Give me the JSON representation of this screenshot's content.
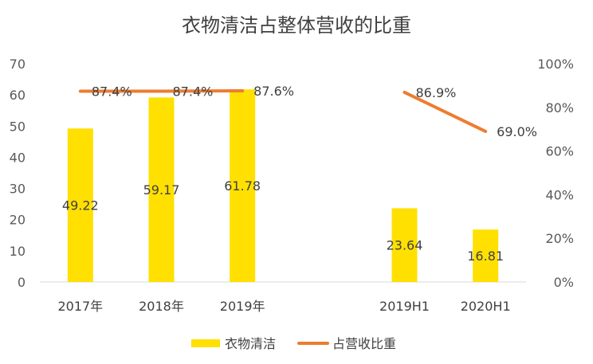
{
  "chart_data": {
    "type": "bar",
    "title": "衣物清洁占整体营收的比重",
    "categories": [
      "2017年",
      "2018年",
      "2019年",
      "",
      "2019H1",
      "2020H1"
    ],
    "series": [
      {
        "name": "衣物清洁",
        "type": "bar",
        "axis": "left",
        "color": "#FFE000",
        "values": [
          49.22,
          59.17,
          61.78,
          null,
          23.64,
          16.81
        ],
        "labels": [
          "49.22",
          "59.17",
          "61.78",
          "",
          "23.64",
          "16.81"
        ]
      },
      {
        "name": "占营收比重",
        "type": "line",
        "axis": "right",
        "color": "#ED7D31",
        "values": [
          0.874,
          0.874,
          0.876,
          null,
          0.869,
          0.69
        ],
        "labels": [
          "87.4%",
          "87.4%",
          "87.6%",
          "",
          "86.9%",
          "69.0%"
        ]
      }
    ],
    "ylim": [
      0,
      70
    ],
    "y_ticks": [
      "0",
      "10",
      "20",
      "30",
      "40",
      "50",
      "60",
      "70"
    ],
    "y2lim": [
      0,
      1
    ],
    "y2_ticks": [
      "0%",
      "20%",
      "40%",
      "60%",
      "80%",
      "100%"
    ],
    "grid": false,
    "legend": "bottom"
  }
}
